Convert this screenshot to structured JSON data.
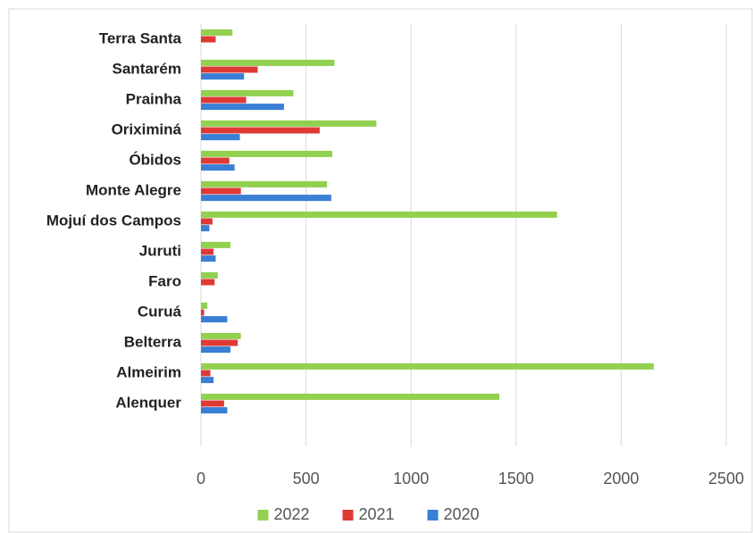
{
  "chart_data": {
    "type": "bar",
    "orientation": "horizontal",
    "categories": [
      "Terra Santa",
      "Santarém",
      "Prainha",
      "Oriximiná",
      "Óbidos",
      "Monte Alegre",
      "Mojuí dos Campos",
      "Juruti",
      "Faro",
      "Curuá",
      "Belterra",
      "Almeirim",
      "Alenquer"
    ],
    "series": [
      {
        "name": "2022",
        "color": "#92d050",
        "values": [
          150,
          635,
          440,
          835,
          625,
          600,
          1695,
          140,
          80,
          30,
          190,
          2155,
          1420
        ]
      },
      {
        "name": "2021",
        "color": "#dd3a36",
        "values": [
          70,
          270,
          215,
          565,
          135,
          190,
          55,
          60,
          65,
          15,
          175,
          45,
          110
        ]
      },
      {
        "name": "2020",
        "color": "#3a7fd5",
        "values": [
          0,
          205,
          395,
          185,
          160,
          620,
          40,
          70,
          0,
          125,
          140,
          60,
          125
        ]
      }
    ],
    "xlim": [
      0,
      2500
    ],
    "xticks": [
      0,
      500,
      1000,
      1500,
      2000,
      2500
    ],
    "grid": true,
    "legend": "bottom"
  }
}
